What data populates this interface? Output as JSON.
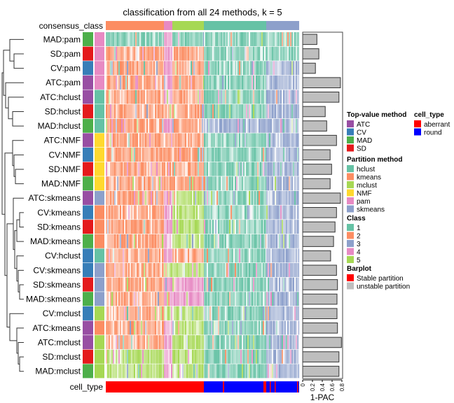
{
  "title": "classification from all 24 methods, k = 5",
  "consensus_label": "consensus_class",
  "cell_type_label": "cell_type",
  "consensus_class_order": [
    2,
    4,
    5,
    1,
    3
  ],
  "colors": {
    "class": {
      "1": "#66C2A5",
      "2": "#FC8D62",
      "3": "#8DA0CB",
      "4": "#E78AC3",
      "5": "#A6D854"
    },
    "top_value": {
      "ATC": "#984EA3",
      "CV": "#377EB8",
      "MAD": "#4DAF4A",
      "SD": "#E41A1C"
    },
    "partition": {
      "hclust": "#66C2A5",
      "kmeans": "#FC8D62",
      "mclust": "#A6D854",
      "NMF": "#FFD92F",
      "pam": "#E78AC3",
      "skmeans": "#8DA0CB"
    },
    "cell_type": {
      "aberrant": "#FF0000",
      "round": "#0000FF"
    },
    "bar_unstable": "#BEBEBE",
    "bar_stable": "#FF0000"
  },
  "chart_data": {
    "type": "heatmap",
    "title": "classification from all 24 methods, k = 5",
    "rows": [
      {
        "label": "MAD:pam",
        "top": "MAD",
        "part": "pam",
        "block_classes": [
          1,
          4,
          1,
          1,
          1
        ],
        "pac1": 0.29
      },
      {
        "label": "SD:pam",
        "top": "SD",
        "part": "pam",
        "block_classes": [
          2,
          4,
          2,
          1,
          1
        ],
        "pac1": 0.33
      },
      {
        "label": "CV:pam",
        "top": "CV",
        "part": "pam",
        "block_classes": [
          2,
          4,
          2,
          1,
          3
        ],
        "pac1": 0.26
      },
      {
        "label": "ATC:pam",
        "top": "ATC",
        "part": "pam",
        "block_classes": [
          2,
          4,
          2,
          1,
          3
        ],
        "pac1": 0.77
      },
      {
        "label": "ATC:hclust",
        "top": "ATC",
        "part": "hclust",
        "block_classes": [
          2,
          4,
          2,
          1,
          3
        ],
        "pac1": 0.74
      },
      {
        "label": "SD:hclust",
        "top": "SD",
        "part": "hclust",
        "block_classes": [
          2,
          2,
          2,
          1,
          3
        ],
        "pac1": 0.46
      },
      {
        "label": "MAD:hclust",
        "top": "MAD",
        "part": "hclust",
        "block_classes": [
          2,
          4,
          2,
          3,
          3
        ],
        "pac1": 0.49
      },
      {
        "label": "ATC:NMF",
        "top": "ATC",
        "part": "NMF",
        "block_classes": [
          2,
          2,
          2,
          1,
          3
        ],
        "pac1": 0.69
      },
      {
        "label": "CV:NMF",
        "top": "CV",
        "part": "NMF",
        "block_classes": [
          2,
          2,
          2,
          1,
          3
        ],
        "pac1": 0.56
      },
      {
        "label": "SD:NMF",
        "top": "SD",
        "part": "NMF",
        "block_classes": [
          2,
          2,
          2,
          1,
          3
        ],
        "pac1": 0.59
      },
      {
        "label": "MAD:NMF",
        "top": "MAD",
        "part": "NMF",
        "block_classes": [
          2,
          2,
          2,
          1,
          3
        ],
        "pac1": 0.56
      },
      {
        "label": "ATC:skmeans",
        "top": "ATC",
        "part": "skmeans",
        "block_classes": [
          2,
          4,
          5,
          1,
          3
        ],
        "pac1": 0.77
      },
      {
        "label": "CV:kmeans",
        "top": "CV",
        "part": "kmeans",
        "block_classes": [
          2,
          4,
          5,
          1,
          3
        ],
        "pac1": 0.69
      },
      {
        "label": "SD:kmeans",
        "top": "SD",
        "part": "kmeans",
        "block_classes": [
          2,
          4,
          5,
          1,
          3
        ],
        "pac1": 0.66
      },
      {
        "label": "MAD:kmeans",
        "top": "MAD",
        "part": "kmeans",
        "block_classes": [
          2,
          4,
          5,
          1,
          3
        ],
        "pac1": 0.63
      },
      {
        "label": "CV:hclust",
        "top": "CV",
        "part": "hclust",
        "block_classes": [
          2,
          4,
          2,
          1,
          3
        ],
        "pac1": 0.57
      },
      {
        "label": "CV:skmeans",
        "top": "CV",
        "part": "skmeans",
        "block_classes": [
          2,
          5,
          5,
          1,
          3
        ],
        "pac1": 0.69
      },
      {
        "label": "SD:skmeans",
        "top": "SD",
        "part": "skmeans",
        "block_classes": [
          2,
          4,
          4,
          1,
          3
        ],
        "pac1": 0.71
      },
      {
        "label": "MAD:skmeans",
        "top": "MAD",
        "part": "skmeans",
        "block_classes": [
          2,
          4,
          4,
          1,
          3
        ],
        "pac1": 0.7
      },
      {
        "label": "CV:mclust",
        "top": "CV",
        "part": "mclust",
        "block_classes": [
          2,
          5,
          5,
          1,
          3
        ],
        "pac1": 0.7
      },
      {
        "label": "ATC:kmeans",
        "top": "ATC",
        "part": "kmeans",
        "block_classes": [
          2,
          4,
          5,
          1,
          3
        ],
        "pac1": 0.71
      },
      {
        "label": "ATC:mclust",
        "top": "ATC",
        "part": "mclust",
        "block_classes": [
          2,
          4,
          5,
          1,
          3
        ],
        "pac1": 0.79
      },
      {
        "label": "SD:mclust",
        "top": "SD",
        "part": "mclust",
        "block_classes": [
          5,
          4,
          5,
          1,
          3
        ],
        "pac1": 0.74
      },
      {
        "label": "MAD:mclust",
        "top": "MAD",
        "part": "mclust",
        "block_classes": [
          5,
          4,
          5,
          1,
          3
        ],
        "pac1": 0.74
      }
    ],
    "barplot": {
      "xlabel": "1-PAC",
      "ticks": [
        "0",
        "0.2",
        "0.4",
        "0.6",
        "0.8"
      ],
      "xlim": [
        0,
        0.8
      ]
    }
  },
  "legend": {
    "top_value": {
      "title": "Top-value method",
      "items": [
        "ATC",
        "CV",
        "MAD",
        "SD"
      ]
    },
    "partition": {
      "title": "Partition method",
      "items": [
        "hclust",
        "kmeans",
        "mclust",
        "NMF",
        "pam",
        "skmeans"
      ]
    },
    "class": {
      "title": "Class",
      "items": [
        "1",
        "2",
        "3",
        "4",
        "5"
      ]
    },
    "barplot": {
      "title": "Barplot",
      "items": [
        "Stable partition",
        "unstable partition"
      ]
    },
    "cell_type": {
      "title": "cell_type",
      "items": [
        "aberrant",
        "round"
      ]
    }
  }
}
